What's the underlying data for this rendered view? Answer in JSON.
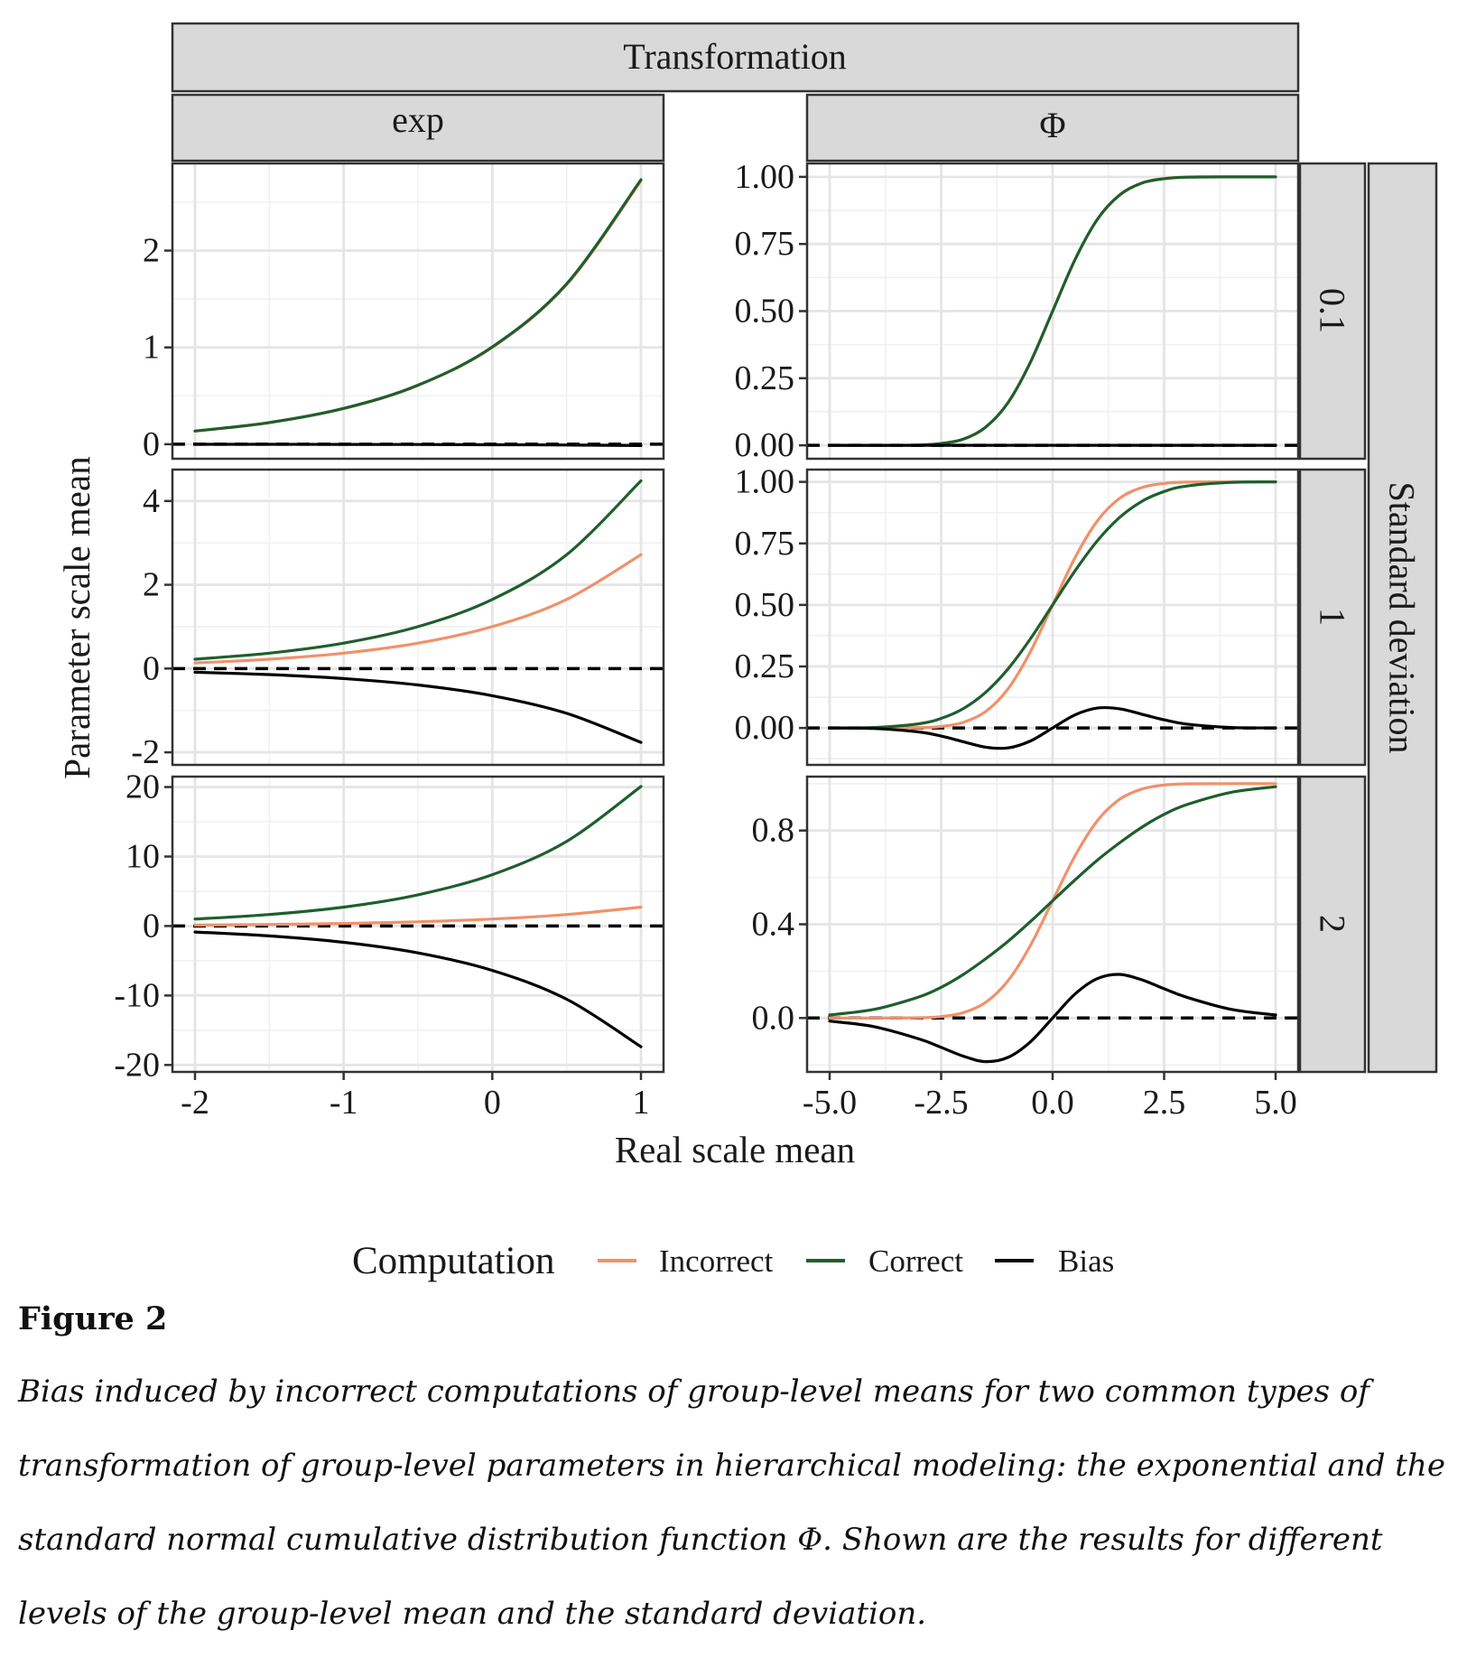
{
  "chart_data": {
    "type": "line",
    "facet_col_title": "Transformation",
    "facet_row_title": "Standard deviation",
    "columns": [
      "exp",
      "Φ"
    ],
    "rows": [
      "0.1",
      "1",
      "2"
    ],
    "xlabel": "Real scale mean",
    "ylabel": "Parameter scale mean",
    "legend": {
      "title": "Computation",
      "position": "bottom",
      "entries": [
        {
          "name": "Incorrect",
          "color": "#f0916a"
        },
        {
          "name": "Correct",
          "color": "#1e5f2c"
        },
        {
          "name": "Bias",
          "color": "#000000"
        }
      ]
    },
    "x_axes": [
      {
        "column": "exp",
        "range": [
          -2,
          1
        ],
        "ticks": [
          -2,
          -1,
          0,
          1
        ],
        "tick_labels": [
          "-2",
          "-1",
          "0",
          "1"
        ]
      },
      {
        "column": "Φ",
        "range": [
          -5,
          5
        ],
        "ticks": [
          -5,
          -2.5,
          0,
          2.5,
          5
        ],
        "tick_labels": [
          "-5.0",
          "-2.5",
          "0.0",
          "2.5",
          "5.0"
        ]
      }
    ],
    "panels": [
      {
        "transformation": "exp",
        "sd": "0.1",
        "ylim": [
          -0.15,
          2.9
        ],
        "yticks": [
          0,
          1,
          2
        ],
        "ytick_labels": [
          "0",
          "1",
          "2"
        ],
        "x": [
          -2,
          -1.5,
          -1,
          -0.5,
          0,
          0.5,
          1
        ],
        "series": [
          {
            "name": "Incorrect",
            "values": [
              0.135,
              0.223,
              0.368,
              0.607,
              1.0,
              1.649,
              2.718
            ]
          },
          {
            "name": "Correct",
            "values": [
              0.136,
              0.224,
              0.37,
              0.61,
              1.005,
              1.657,
              2.732
            ]
          },
          {
            "name": "Bias",
            "values": [
              -0.001,
              -0.001,
              -0.002,
              -0.003,
              -0.005,
              -0.008,
              -0.014
            ]
          }
        ]
      },
      {
        "transformation": "Φ",
        "sd": "0.1",
        "ylim": [
          -0.05,
          1.05
        ],
        "yticks": [
          0,
          0.25,
          0.5,
          0.75,
          1
        ],
        "ytick_labels": [
          "0.00",
          "0.25",
          "0.50",
          "0.75",
          "1.00"
        ],
        "x": [
          -5,
          -4,
          -3,
          -2.5,
          -2,
          -1.5,
          -1,
          -0.5,
          0,
          0.5,
          1,
          1.5,
          2,
          2.5,
          3,
          4,
          5
        ],
        "series": [
          {
            "name": "Incorrect",
            "values": [
              0.0,
              0.0,
              0.001,
              0.006,
              0.023,
              0.067,
              0.159,
              0.309,
              0.5,
              0.691,
              0.841,
              0.933,
              0.977,
              0.994,
              0.999,
              1.0,
              1.0
            ]
          },
          {
            "name": "Correct",
            "values": [
              0.0,
              0.0,
              0.001,
              0.007,
              0.023,
              0.068,
              0.159,
              0.309,
              0.5,
              0.691,
              0.841,
              0.932,
              0.977,
              0.993,
              0.999,
              1.0,
              1.0
            ]
          },
          {
            "name": "Bias",
            "values": [
              0,
              0,
              0,
              0,
              0,
              0,
              0,
              0,
              0,
              0,
              0,
              0,
              0,
              0,
              0,
              0,
              0
            ]
          }
        ]
      },
      {
        "transformation": "exp",
        "sd": "1",
        "ylim": [
          -2.3,
          4.75
        ],
        "yticks": [
          -2,
          0,
          2,
          4
        ],
        "ytick_labels": [
          "-2",
          "0",
          "2",
          "4"
        ],
        "x": [
          -2,
          -1.5,
          -1,
          -0.5,
          0,
          0.5,
          1
        ],
        "series": [
          {
            "name": "Incorrect",
            "values": [
              0.135,
              0.223,
              0.368,
              0.607,
              1.0,
              1.649,
              2.718
            ]
          },
          {
            "name": "Correct",
            "values": [
              0.223,
              0.368,
              0.607,
              1.0,
              1.649,
              2.718,
              4.482
            ]
          },
          {
            "name": "Bias",
            "values": [
              -0.088,
              -0.145,
              -0.239,
              -0.393,
              -0.649,
              -1.069,
              -1.764
            ]
          }
        ]
      },
      {
        "transformation": "Φ",
        "sd": "1",
        "ylim": [
          -0.15,
          1.05
        ],
        "yticks": [
          0,
          0.25,
          0.5,
          0.75,
          1
        ],
        "ytick_labels": [
          "0.00",
          "0.25",
          "0.50",
          "0.75",
          "1.00"
        ],
        "x": [
          -5,
          -4,
          -3,
          -2.5,
          -2,
          -1.5,
          -1,
          -0.5,
          0,
          0.5,
          1,
          1.5,
          2,
          2.5,
          3,
          4,
          5
        ],
        "series": [
          {
            "name": "Incorrect",
            "values": [
              0.0,
              0.0,
              0.001,
              0.006,
              0.023,
              0.067,
              0.159,
              0.309,
              0.5,
              0.691,
              0.841,
              0.933,
              0.977,
              0.994,
              0.999,
              1.0,
              1.0
            ]
          },
          {
            "name": "Correct",
            "values": [
              0.0,
              0.002,
              0.017,
              0.039,
              0.079,
              0.145,
              0.24,
              0.362,
              0.5,
              0.638,
              0.76,
              0.855,
              0.921,
              0.961,
              0.983,
              0.998,
              1.0
            ]
          },
          {
            "name": "Bias",
            "values": [
              0.0,
              -0.002,
              -0.016,
              -0.033,
              -0.056,
              -0.078,
              -0.081,
              -0.053,
              0.0,
              0.053,
              0.081,
              0.078,
              0.056,
              0.033,
              0.016,
              0.002,
              0.0
            ]
          }
        ]
      },
      {
        "transformation": "exp",
        "sd": "2",
        "ylim": [
          -21,
          21.5
        ],
        "yticks": [
          -20,
          -10,
          0,
          10,
          20
        ],
        "ytick_labels": [
          "-20",
          "-10",
          "0",
          "10",
          "20"
        ],
        "x": [
          -2,
          -1.5,
          -1,
          -0.5,
          0,
          0.5,
          1
        ],
        "series": [
          {
            "name": "Incorrect",
            "values": [
              0.135,
              0.223,
              0.368,
              0.607,
              1.0,
              1.649,
              2.718
            ]
          },
          {
            "name": "Correct",
            "values": [
              1.0,
              1.649,
              2.718,
              4.482,
              7.389,
              12.182,
              20.086
            ]
          },
          {
            "name": "Bias",
            "values": [
              -0.865,
              -1.426,
              -2.35,
              -3.875,
              -6.389,
              -10.533,
              -17.368
            ]
          }
        ]
      },
      {
        "transformation": "Φ",
        "sd": "2",
        "ylim": [
          -0.23,
          1.03
        ],
        "yticks": [
          0,
          0.4,
          0.8
        ],
        "ytick_labels": [
          "0.0",
          "0.4",
          "0.8"
        ],
        "x": [
          -5,
          -4,
          -3,
          -2.5,
          -2,
          -1.5,
          -1,
          -0.5,
          0,
          0.5,
          1,
          1.5,
          2,
          2.5,
          3,
          4,
          5
        ],
        "series": [
          {
            "name": "Incorrect",
            "values": [
              0.0,
              0.0,
              0.001,
              0.006,
              0.023,
              0.067,
              0.159,
              0.309,
              0.5,
              0.691,
              0.841,
              0.933,
              0.977,
              0.994,
              0.999,
              1.0,
              1.0
            ]
          },
          {
            "name": "Correct",
            "values": [
              0.013,
              0.037,
              0.09,
              0.131,
              0.186,
              0.253,
              0.327,
              0.411,
              0.5,
              0.589,
              0.673,
              0.747,
              0.814,
              0.869,
              0.91,
              0.963,
              0.987
            ]
          },
          {
            "name": "Bias",
            "values": [
              -0.013,
              -0.037,
              -0.089,
              -0.125,
              -0.163,
              -0.186,
              -0.168,
              -0.102,
              0.0,
              0.102,
              0.168,
              0.186,
              0.163,
              0.125,
              0.089,
              0.037,
              0.013
            ]
          }
        ]
      }
    ]
  },
  "caption": {
    "label": "Figure 2",
    "text": "Bias induced by incorrect computations of group-level means for two common types of transformation of group-level parameters in hierarchical modeling: the exponential and the standard normal cumulative distribution function Φ. Shown are the results for different levels of the group-level mean and the standard deviation."
  }
}
